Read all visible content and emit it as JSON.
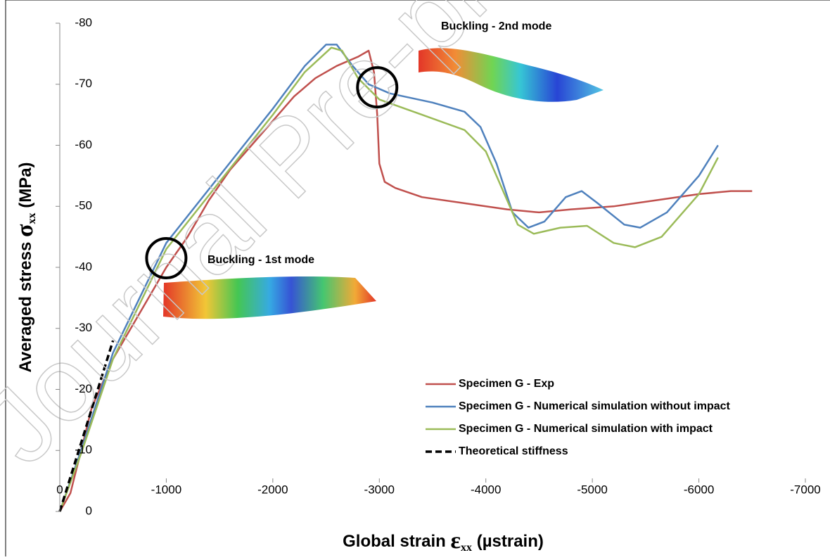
{
  "chart_data": {
    "type": "line",
    "watermark": "Journal Pre-proof",
    "xlabel": {
      "text": "Global strain ",
      "symbol": "ε",
      "subscript": "xx",
      "unit": " (µstrain)"
    },
    "ylabel": {
      "text": "Averaged stress ",
      "symbol": "σ",
      "subscript": "xx",
      "unit": " (MPa)"
    },
    "xlim": [
      0,
      -7000
    ],
    "xticks": [
      0,
      -1000,
      -2000,
      -3000,
      -4000,
      -5000,
      -6000,
      -7000
    ],
    "ylim": [
      0,
      -80
    ],
    "yticks": [
      0,
      -10,
      -20,
      -30,
      -40,
      -50,
      -60,
      -70,
      -80
    ],
    "grid": false,
    "legend": "lower right",
    "annotations": [
      {
        "text": "Buckling - 1st mode",
        "x": -1000,
        "y": -41.5
      },
      {
        "text": "Buckling - 2nd mode",
        "x": -2980,
        "y": -69.5
      }
    ],
    "series": [
      {
        "name": "Specimen G - Exp",
        "color": "#c0504d",
        "dash": false,
        "x": [
          0,
          -100,
          -200,
          -300,
          -400,
          -500,
          -700,
          -900,
          -1000,
          -1200,
          -1400,
          -1600,
          -1800,
          -2000,
          -2200,
          -2400,
          -2600,
          -2800,
          -2900,
          -2950,
          -2980,
          -3000,
          -3050,
          -3150,
          -3400,
          -3800,
          -4200,
          -4500,
          -4800,
          -5200,
          -5600,
          -6000,
          -6300,
          -6500
        ],
        "values": [
          0,
          -3,
          -10,
          -17,
          -21,
          -25,
          -31,
          -37,
          -40,
          -45,
          -51,
          -56,
          -60,
          -64,
          -68,
          -71,
          -73,
          -74.5,
          -75.5,
          -72,
          -65,
          -57,
          -54,
          -53,
          -51.5,
          -50.5,
          -49.5,
          -49,
          -49.5,
          -50,
          -51,
          -52,
          -52.5,
          -52.5
        ]
      },
      {
        "name": "Specimen G - Numerical simulation without impact",
        "color": "#4f81bd",
        "dash": false,
        "x": [
          0,
          -200,
          -500,
          -1000,
          -1500,
          -2000,
          -2300,
          -2500,
          -2600,
          -2750,
          -2900,
          -3100,
          -3500,
          -3800,
          -3950,
          -4100,
          -4250,
          -4400,
          -4550,
          -4750,
          -4900,
          -5050,
          -5300,
          -5450,
          -5700,
          -6000,
          -6180
        ],
        "values": [
          0,
          -10,
          -26,
          -44,
          -55,
          -66,
          -73,
          -76.5,
          -76.5,
          -73,
          -70,
          -68.5,
          -67,
          -65.5,
          -63,
          -57,
          -49,
          -46.5,
          -47.5,
          -51.5,
          -52.5,
          -50.5,
          -47,
          -46.5,
          -49,
          -55,
          -60
        ]
      },
      {
        "name": "Specimen G - Numerical simulation with impact",
        "color": "#9bbb59",
        "dash": false,
        "x": [
          0,
          -200,
          -500,
          -1000,
          -1500,
          -2000,
          -2300,
          -2550,
          -2650,
          -2800,
          -3000,
          -3400,
          -3800,
          -4000,
          -4150,
          -4300,
          -4450,
          -4700,
          -4950,
          -5200,
          -5400,
          -5650,
          -6000,
          -6180
        ],
        "values": [
          0,
          -9.5,
          -25,
          -43,
          -54,
          -65,
          -72,
          -76,
          -75.5,
          -71,
          -67.5,
          -65,
          -62.5,
          -59,
          -53,
          -47,
          -45.5,
          -46.5,
          -46.8,
          -44,
          -43.3,
          -45,
          -52,
          -58
        ]
      },
      {
        "name": "Theoretical stiffness",
        "color": "#000000",
        "dash": true,
        "x": [
          0,
          -500
        ],
        "values": [
          0,
          -28
        ]
      }
    ]
  }
}
